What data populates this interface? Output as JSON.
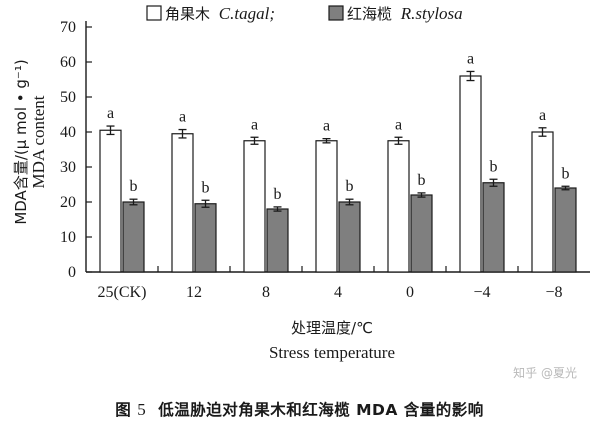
{
  "chart_data": {
    "type": "bar",
    "categories": [
      "25(CK)",
      "12",
      "8",
      "4",
      "0",
      "−4",
      "−8"
    ],
    "series": [
      {
        "name": "角果木 C.tagal;",
        "name_cn": "角果木",
        "name_latin": "C.tagal;",
        "values": [
          40.5,
          39.5,
          37.5,
          37.5,
          37.5,
          56,
          40
        ],
        "errors": [
          1.2,
          1.2,
          1.0,
          0.6,
          1.0,
          1.3,
          1.2
        ],
        "labels": [
          "a",
          "a",
          "a",
          "a",
          "a",
          "a",
          "a"
        ],
        "color": "#ffffff"
      },
      {
        "name": "红海榄 R.stylosa",
        "name_cn": "红海榄",
        "name_latin": "R.stylosa",
        "values": [
          20,
          19.5,
          18,
          20,
          22,
          25.5,
          24
        ],
        "errors": [
          0.8,
          1.0,
          0.6,
          0.8,
          0.6,
          1.0,
          0.5
        ],
        "labels": [
          "b",
          "b",
          "b",
          "b",
          "b",
          "b",
          "b"
        ],
        "color": "#7f7f7f"
      }
    ],
    "ylabel": "MDA含量/(μ mol • g⁻¹)",
    "ylabel_en": "MDA content",
    "xlabel": "处理温度/℃",
    "xlabel_en": "Stress temperature",
    "ylim": [
      0,
      70
    ],
    "yticks": [
      0,
      10,
      20,
      30,
      40,
      50,
      60,
      70
    ],
    "legend_position": "top",
    "grid": false
  },
  "caption": {
    "prefix": "图",
    "number": "5",
    "text": "低温胁迫对角果木和红海榄 MDA 含量的影响"
  },
  "watermark": "知乎 @夏光"
}
